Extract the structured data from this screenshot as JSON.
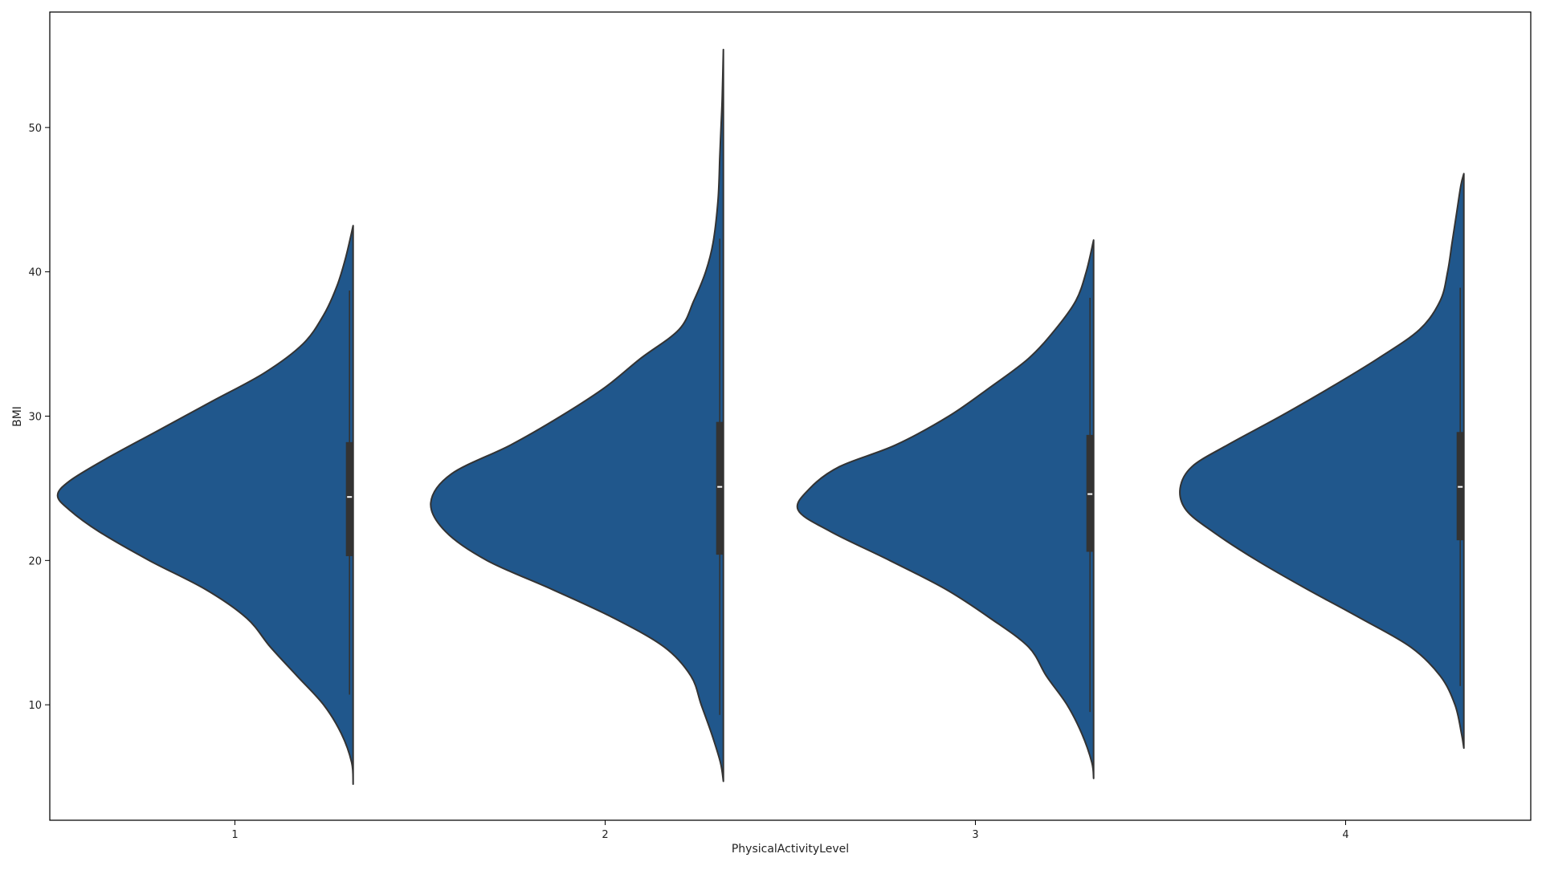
{
  "chart_data": {
    "type": "violin",
    "split": true,
    "orientation": "vertical",
    "xlabel": "PhysicalActivityLevel",
    "ylabel": "BMI",
    "ylim": [
      2,
      58
    ],
    "yticks": [
      10,
      20,
      30,
      40,
      50
    ],
    "grid": false,
    "legend": "none",
    "color": "#20578c",
    "categories": [
      "1",
      "2",
      "3",
      "4"
    ],
    "violins": [
      {
        "category": "1",
        "range": [
          4.5,
          43.2
        ],
        "box": {
          "q1": 20.3,
          "median": 24.4,
          "q3": 28.2
        },
        "whisker": [
          10.7,
          38.7
        ],
        "density": [
          [
            4.5,
            0
          ],
          [
            6,
            0.005
          ],
          [
            8,
            0.04
          ],
          [
            10,
            0.1
          ],
          [
            12,
            0.19
          ],
          [
            14,
            0.28
          ],
          [
            16,
            0.36
          ],
          [
            18,
            0.5
          ],
          [
            20,
            0.69
          ],
          [
            22,
            0.86
          ],
          [
            23.5,
            0.96
          ],
          [
            24.5,
            1.0
          ],
          [
            25.5,
            0.96
          ],
          [
            27,
            0.84
          ],
          [
            29,
            0.66
          ],
          [
            31,
            0.48
          ],
          [
            33,
            0.3
          ],
          [
            35,
            0.17
          ],
          [
            37,
            0.1
          ],
          [
            39,
            0.055
          ],
          [
            41,
            0.025
          ],
          [
            43.2,
            0
          ]
        ]
      },
      {
        "category": "2",
        "range": [
          4.7,
          55.4
        ],
        "box": {
          "q1": 20.4,
          "median": 25.1,
          "q3": 29.6
        },
        "whisker": [
          9.3,
          42.3
        ],
        "density": [
          [
            4.7,
            0
          ],
          [
            6,
            0.01
          ],
          [
            8,
            0.04
          ],
          [
            10,
            0.075
          ],
          [
            12,
            0.11
          ],
          [
            14,
            0.2
          ],
          [
            16,
            0.37
          ],
          [
            18,
            0.58
          ],
          [
            20,
            0.8
          ],
          [
            22,
            0.94
          ],
          [
            24,
            0.99
          ],
          [
            26,
            0.92
          ],
          [
            28,
            0.72
          ],
          [
            30,
            0.55
          ],
          [
            32,
            0.4
          ],
          [
            34,
            0.28
          ],
          [
            36,
            0.15
          ],
          [
            38,
            0.1
          ],
          [
            40,
            0.06
          ],
          [
            42,
            0.035
          ],
          [
            45,
            0.018
          ],
          [
            48,
            0.012
          ],
          [
            50,
            0.008
          ],
          [
            52,
            0.004
          ],
          [
            55.4,
            0
          ]
        ]
      },
      {
        "category": "3",
        "range": [
          4.9,
          42.2
        ],
        "box": {
          "q1": 20.6,
          "median": 24.6,
          "q3": 28.7
        },
        "whisker": [
          9.5,
          38.2
        ],
        "density": [
          [
            4.9,
            0
          ],
          [
            6,
            0.006
          ],
          [
            8,
            0.04
          ],
          [
            10,
            0.09
          ],
          [
            12,
            0.16
          ],
          [
            14,
            0.22
          ],
          [
            16,
            0.35
          ],
          [
            18,
            0.5
          ],
          [
            20,
            0.69
          ],
          [
            22,
            0.89
          ],
          [
            23.5,
            1.0
          ],
          [
            25,
            0.96
          ],
          [
            26.5,
            0.86
          ],
          [
            28,
            0.67
          ],
          [
            30,
            0.49
          ],
          [
            32,
            0.35
          ],
          [
            34,
            0.22
          ],
          [
            36,
            0.13
          ],
          [
            38,
            0.06
          ],
          [
            40,
            0.025
          ],
          [
            42.2,
            0
          ]
        ]
      },
      {
        "category": "4",
        "range": [
          7,
          46.8
        ],
        "box": {
          "q1": 21.4,
          "median": 25.1,
          "q3": 28.9
        },
        "whisker": [
          11.3,
          38.9
        ],
        "density": [
          [
            7,
            0
          ],
          [
            8,
            0.008
          ],
          [
            10,
            0.03
          ],
          [
            12,
            0.08
          ],
          [
            14,
            0.18
          ],
          [
            16,
            0.35
          ],
          [
            18,
            0.53
          ],
          [
            20,
            0.7
          ],
          [
            22,
            0.85
          ],
          [
            23.5,
            0.94
          ],
          [
            25,
            0.96
          ],
          [
            26.5,
            0.92
          ],
          [
            28,
            0.8
          ],
          [
            30,
            0.62
          ],
          [
            32,
            0.45
          ],
          [
            34,
            0.29
          ],
          [
            36,
            0.15
          ],
          [
            38,
            0.08
          ],
          [
            40,
            0.055
          ],
          [
            42,
            0.04
          ],
          [
            44,
            0.025
          ],
          [
            46,
            0.01
          ],
          [
            46.8,
            0
          ]
        ]
      }
    ]
  }
}
